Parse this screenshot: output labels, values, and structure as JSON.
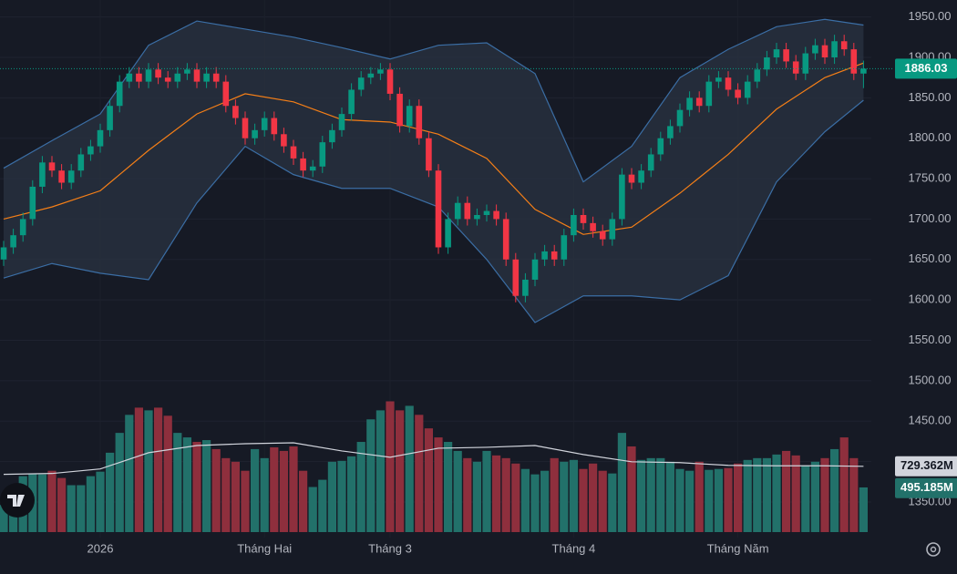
{
  "chart_data": {
    "type": "candlestick",
    "categories": [
      null,
      null,
      null,
      null,
      null,
      null,
      null,
      null,
      null,
      null,
      "2026",
      null,
      null,
      null,
      null,
      null,
      null,
      null,
      null,
      null,
      null,
      null,
      null,
      null,
      null,
      null,
      null,
      "Tháng Hai",
      null,
      null,
      null,
      null,
      null,
      null,
      null,
      null,
      null,
      null,
      null,
      null,
      "Tháng 3",
      null,
      null,
      null,
      null,
      null,
      null,
      null,
      null,
      null,
      null,
      null,
      null,
      null,
      null,
      null,
      null,
      null,
      null,
      "Tháng 4",
      null,
      null,
      null,
      null,
      null,
      null,
      null,
      null,
      null,
      null,
      null,
      null,
      null,
      null,
      null,
      null,
      "Tháng Năm",
      null,
      null,
      null,
      null,
      null,
      null,
      null,
      null,
      null,
      null,
      null,
      null,
      null
    ],
    "open": [
      1650,
      1665,
      1680,
      1700,
      1740,
      1770,
      1760,
      1745,
      1760,
      1780,
      1790,
      1810,
      1840,
      1870,
      1880,
      1870,
      1885,
      1875,
      1870,
      1880,
      1885,
      1870,
      1880,
      1870,
      1840,
      1825,
      1800,
      1810,
      1825,
      1805,
      1790,
      1775,
      1760,
      1765,
      1795,
      1810,
      1830,
      1860,
      1875,
      1880,
      1885,
      1855,
      1815,
      1840,
      1800,
      1760,
      1665,
      1700,
      1720,
      1700,
      1705,
      1710,
      1700,
      1650,
      1605,
      1625,
      1650,
      1660,
      1650,
      1680,
      1705,
      1695,
      1685,
      1675,
      1700,
      1755,
      1745,
      1760,
      1780,
      1800,
      1815,
      1835,
      1850,
      1840,
      1870,
      1875,
      1860,
      1850,
      1870,
      1885,
      1900,
      1910,
      1895,
      1880,
      1905,
      1915,
      1900,
      1920,
      1910,
      1880
    ],
    "high": [
      1673,
      1688,
      1708,
      1748,
      1778,
      1778,
      1768,
      1768,
      1788,
      1798,
      1818,
      1848,
      1878,
      1888,
      1888,
      1893,
      1893,
      1883,
      1888,
      1893,
      1893,
      1888,
      1888,
      1878,
      1848,
      1833,
      1818,
      1833,
      1833,
      1813,
      1798,
      1783,
      1773,
      1803,
      1818,
      1838,
      1868,
      1883,
      1888,
      1893,
      1893,
      1863,
      1848,
      1848,
      1808,
      1768,
      1708,
      1728,
      1728,
      1713,
      1718,
      1718,
      1708,
      1658,
      1633,
      1658,
      1668,
      1668,
      1688,
      1713,
      1713,
      1703,
      1693,
      1708,
      1763,
      1763,
      1768,
      1788,
      1808,
      1823,
      1843,
      1858,
      1858,
      1878,
      1883,
      1883,
      1868,
      1878,
      1893,
      1908,
      1918,
      1918,
      1903,
      1913,
      1923,
      1923,
      1928,
      1928,
      1918,
      1896
    ],
    "low": [
      1642,
      1657,
      1672,
      1692,
      1732,
      1752,
      1737,
      1737,
      1752,
      1772,
      1782,
      1802,
      1832,
      1862,
      1862,
      1862,
      1867,
      1862,
      1862,
      1872,
      1862,
      1862,
      1862,
      1832,
      1817,
      1792,
      1792,
      1802,
      1797,
      1782,
      1767,
      1752,
      1752,
      1757,
      1787,
      1802,
      1822,
      1852,
      1867,
      1872,
      1847,
      1807,
      1807,
      1792,
      1752,
      1657,
      1657,
      1692,
      1692,
      1692,
      1697,
      1692,
      1642,
      1597,
      1597,
      1617,
      1642,
      1642,
      1642,
      1672,
      1687,
      1677,
      1667,
      1667,
      1692,
      1737,
      1737,
      1752,
      1772,
      1792,
      1807,
      1827,
      1832,
      1832,
      1862,
      1852,
      1842,
      1842,
      1862,
      1877,
      1892,
      1887,
      1872,
      1872,
      1897,
      1892,
      1892,
      1902,
      1872,
      1862
    ],
    "close": [
      1665,
      1680,
      1700,
      1740,
      1770,
      1760,
      1745,
      1760,
      1780,
      1790,
      1810,
      1840,
      1870,
      1880,
      1870,
      1885,
      1875,
      1870,
      1880,
      1885,
      1870,
      1880,
      1870,
      1840,
      1825,
      1800,
      1810,
      1825,
      1805,
      1790,
      1775,
      1760,
      1765,
      1795,
      1810,
      1830,
      1860,
      1875,
      1880,
      1885,
      1855,
      1815,
      1840,
      1800,
      1760,
      1665,
      1700,
      1720,
      1700,
      1705,
      1710,
      1700,
      1650,
      1605,
      1625,
      1650,
      1660,
      1650,
      1680,
      1705,
      1695,
      1685,
      1675,
      1700,
      1755,
      1745,
      1760,
      1780,
      1800,
      1815,
      1835,
      1850,
      1840,
      1870,
      1875,
      1860,
      1850,
      1870,
      1885,
      1900,
      1910,
      1895,
      1880,
      1905,
      1915,
      1900,
      1920,
      1910,
      1880,
      1886.03
    ],
    "up_color": "#089981",
    "down_color": "#f23645",
    "volume": {
      "values": [
        300,
        350,
        620,
        650,
        640,
        680,
        600,
        520,
        520,
        620,
        670,
        880,
        1100,
        1300,
        1380,
        1350,
        1380,
        1290,
        1100,
        1050,
        1000,
        1020,
        920,
        820,
        780,
        680,
        920,
        820,
        940,
        900,
        950,
        680,
        500,
        580,
        780,
        790,
        840,
        1000,
        1250,
        1350,
        1450,
        1350,
        1400,
        1300,
        1150,
        1050,
        1000,
        900,
        820,
        780,
        900,
        850,
        820,
        760,
        700,
        640,
        680,
        820,
        780,
        800,
        700,
        760,
        680,
        650,
        1100,
        950,
        800,
        820,
        820,
        780,
        700,
        680,
        780,
        690,
        700,
        710,
        760,
        800,
        820,
        820,
        860,
        900,
        850,
        740,
        780,
        820,
        920,
        1050,
        820,
        495.185
      ],
      "last_label": "495.185M",
      "up_color": "#22716a",
      "down_color": "#8e2f3d"
    },
    "volume_ma": {
      "index": [
        0,
        5,
        10,
        15,
        20,
        25,
        30,
        35,
        40,
        45,
        50,
        55,
        60,
        65,
        70,
        75,
        80,
        85,
        89
      ],
      "values": [
        640,
        650,
        700,
        880,
        960,
        980,
        990,
        900,
        830,
        930,
        940,
        960,
        860,
        780,
        770,
        740,
        735,
        735,
        729.362
      ],
      "last_label": "729.362M",
      "color": "#d1d4dc"
    },
    "bollinger": {
      "index": [
        0,
        5,
        10,
        15,
        20,
        25,
        30,
        35,
        40,
        45,
        50,
        55,
        60,
        65,
        70,
        75,
        80,
        85,
        89
      ],
      "upper": [
        1763,
        1797,
        1830,
        1915,
        1945,
        1935,
        1925,
        1912,
        1898,
        1915,
        1918,
        1880,
        1746,
        1790,
        1875,
        1910,
        1938,
        1947,
        1940
      ],
      "middle": [
        1700,
        1715,
        1735,
        1785,
        1830,
        1855,
        1845,
        1823,
        1820,
        1805,
        1775,
        1712,
        1681,
        1690,
        1732,
        1780,
        1836,
        1875,
        1893
      ],
      "lower": [
        1627,
        1645,
        1633,
        1625,
        1720,
        1790,
        1755,
        1738,
        1738,
        1715,
        1650,
        1572,
        1605,
        1605,
        1600,
        1630,
        1746,
        1808,
        1847
      ],
      "band_color": "#3b6ea5",
      "middle_color": "#f57f17",
      "fill": "#2a3341"
    },
    "ylim": [
      1306,
      1971
    ],
    "volume_ylim": [
      0,
      5900
    ],
    "yticks": [
      {
        "value": 1350,
        "label": "1350.00"
      },
      {
        "value": 1400,
        "label": "1400.00"
      },
      {
        "value": 1450,
        "label": "1450.00"
      },
      {
        "value": 1500,
        "label": "1500.00"
      },
      {
        "value": 1550,
        "label": "1550.00"
      },
      {
        "value": 1600,
        "label": "1600.00"
      },
      {
        "value": 1650,
        "label": "1650.00"
      },
      {
        "value": 1700,
        "label": "1700.00"
      },
      {
        "value": 1750,
        "label": "1750.00"
      },
      {
        "value": 1800,
        "label": "1800.00"
      },
      {
        "value": 1850,
        "label": "1850.00"
      },
      {
        "value": 1900,
        "label": "1900.00"
      },
      {
        "value": 1950,
        "label": "1950.00"
      }
    ],
    "grid": true
  }
}
